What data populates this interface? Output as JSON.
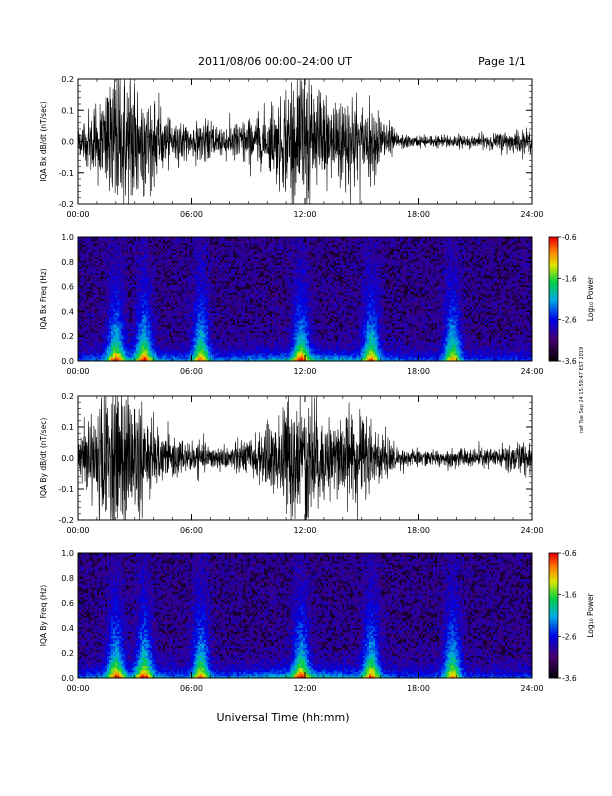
{
  "header": {
    "title": "2011/08/06  00:00–24:00 UT",
    "page": "Page 1/1"
  },
  "footer": {
    "xlabel": "Universal Time (hh:mm)"
  },
  "side_stamp": "rwf Tue Sep 24 15:59:47 EST 2019",
  "colorbar": {
    "label": "Log₁₀ Power",
    "ticks": [
      "-0.6",
      "-1.6",
      "-2.6",
      "-3.6"
    ],
    "range": [
      -3.6,
      -0.6
    ]
  },
  "chart_data": [
    {
      "type": "line",
      "id": "bx_timeseries",
      "ylabel": "IQA Bx dB/dt (nT/sec)",
      "xlim": [
        0,
        24
      ],
      "ylim": [
        -0.2,
        0.2
      ],
      "xticks": [
        "00:00",
        "06:00",
        "12:00",
        "18:00",
        "24:00"
      ],
      "yticks": [
        "0.2",
        "0.1",
        "0.0",
        "-0.1",
        "-0.2"
      ],
      "series": [
        {
          "hours": [
            0,
            1,
            2,
            3,
            4,
            5,
            6,
            7,
            8,
            9,
            10,
            11,
            12,
            13,
            14,
            15,
            16,
            17,
            18,
            19,
            20,
            21,
            22,
            23,
            24
          ],
          "amplitude": [
            0.04,
            0.12,
            0.22,
            0.2,
            0.12,
            0.06,
            0.05,
            0.06,
            0.05,
            0.07,
            0.09,
            0.16,
            0.22,
            0.14,
            0.16,
            0.12,
            0.08,
            0.02,
            0.018,
            0.018,
            0.02,
            0.02,
            0.025,
            0.035,
            0.03
          ]
        }
      ]
    },
    {
      "type": "heatmap",
      "id": "bx_spectrogram",
      "ylabel": "IQA Bx Freq (Hz)",
      "xlim": [
        0,
        24
      ],
      "ylim": [
        0.0,
        1.0
      ],
      "xticks": [
        "00:00",
        "06:00",
        "12:00",
        "18:00",
        "24:00"
      ],
      "yticks": [
        "1.0",
        "0.8",
        "0.6",
        "0.4",
        "0.2",
        "0.0"
      ],
      "zlabel": "Log₁₀ Power",
      "zlim": [
        -3.6,
        -0.6
      ],
      "bright_bands_hours": [
        2.0,
        3.5,
        6.5,
        11.8,
        15.5,
        19.8
      ]
    },
    {
      "type": "line",
      "id": "by_timeseries",
      "ylabel": "IQA By dB/dt (nT/sec)",
      "xlim": [
        0,
        24
      ],
      "ylim": [
        -0.2,
        0.2
      ],
      "xticks": [
        "00:00",
        "06:00",
        "12:00",
        "18:00",
        "24:00"
      ],
      "yticks": [
        "0.2",
        "0.1",
        "0.0",
        "-0.1",
        "-0.2"
      ],
      "series": [
        {
          "hours": [
            0,
            1,
            2,
            3,
            4,
            5,
            6,
            7,
            8,
            9,
            10,
            11,
            12,
            13,
            14,
            15,
            16,
            17,
            18,
            19,
            20,
            21,
            22,
            23,
            24
          ],
          "amplitude": [
            0.06,
            0.18,
            0.24,
            0.2,
            0.1,
            0.06,
            0.05,
            0.04,
            0.04,
            0.06,
            0.09,
            0.18,
            0.24,
            0.12,
            0.14,
            0.15,
            0.08,
            0.03,
            0.025,
            0.025,
            0.03,
            0.03,
            0.03,
            0.05,
            0.04
          ]
        }
      ]
    },
    {
      "type": "heatmap",
      "id": "by_spectrogram",
      "ylabel": "IQA By Freq (Hz)",
      "xlim": [
        0,
        24
      ],
      "ylim": [
        0.0,
        1.0
      ],
      "xticks": [
        "00:00",
        "06:00",
        "12:00",
        "18:00",
        "24:00"
      ],
      "yticks": [
        "1.0",
        "0.8",
        "0.6",
        "0.4",
        "0.2",
        "0.0"
      ],
      "zlabel": "Log₁₀ Power",
      "zlim": [
        -3.6,
        -0.6
      ],
      "bright_bands_hours": [
        2.0,
        3.5,
        6.5,
        11.8,
        15.5,
        19.8
      ]
    }
  ]
}
